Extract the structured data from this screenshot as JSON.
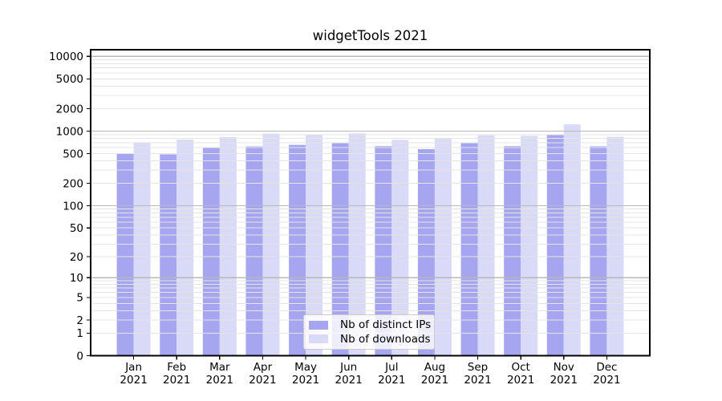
{
  "figure": {
    "background": "#ffffff"
  },
  "chart_data": {
    "type": "bar",
    "title": "widgetTools 2021",
    "categories": [
      "Jan 2021",
      "Feb 2021",
      "Mar 2021",
      "Apr 2021",
      "May 2021",
      "Jun 2021",
      "Jul 2021",
      "Aug 2021",
      "Sep 2021",
      "Oct 2021",
      "Nov 2021",
      "Dec 2021"
    ],
    "series": [
      {
        "name": "Nb of distinct IPs",
        "color": "#a6a6f0",
        "values": [
          505,
          490,
          600,
          625,
          655,
          690,
          630,
          575,
          690,
          630,
          900,
          627
        ]
      },
      {
        "name": "Nb of downloads",
        "color": "#d9d9f8",
        "values": [
          700,
          770,
          835,
          930,
          885,
          935,
          765,
          790,
          880,
          865,
          1230,
          840
        ]
      }
    ],
    "xlabel": "",
    "ylabel": "",
    "yscale": "log1p-symlog",
    "y_ticks": [
      0,
      1,
      2,
      5,
      10,
      20,
      50,
      100,
      200,
      500,
      1000,
      2000,
      5000,
      10000
    ],
    "ylim": [
      0,
      12270
    ],
    "grid": {
      "enabled": true,
      "major_color": "#b8b8b8",
      "minor_color": "#e4e4e4",
      "drawn_above_bars": true
    },
    "legend": {
      "position": "lower center",
      "border_color": "#cccccc"
    },
    "axis_color": "#000000",
    "tick_label_color": "#000000"
  }
}
